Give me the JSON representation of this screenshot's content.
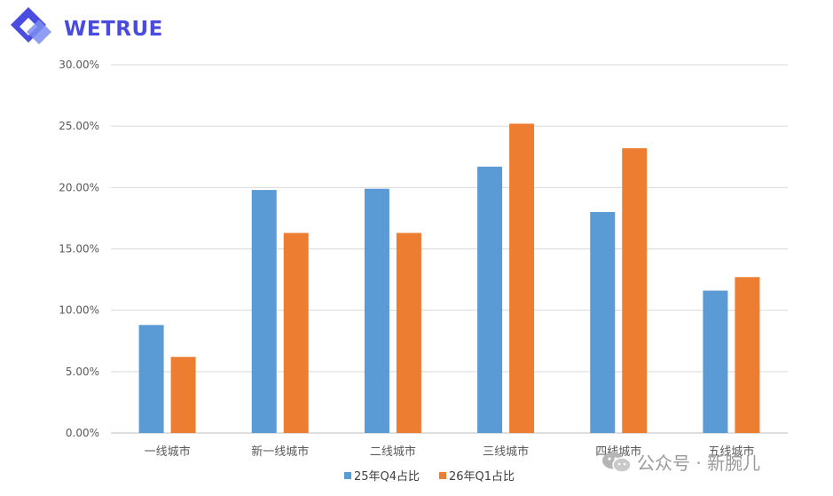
{
  "brand": {
    "name": "WETRUE"
  },
  "watermark": {
    "text": "公众号 · 新腕儿"
  },
  "chart_data": {
    "type": "bar",
    "categories": [
      "一线城市",
      "新一线城市",
      "二线城市",
      "三线城市",
      "四线城市",
      "五线城市"
    ],
    "series": [
      {
        "name": "25年Q4占比",
        "values": [
          8.8,
          19.8,
          19.9,
          21.7,
          18.0,
          11.6
        ],
        "color": "#5b9bd5"
      },
      {
        "name": "26年Q1占比",
        "values": [
          6.2,
          16.3,
          16.3,
          25.2,
          23.2,
          12.7
        ],
        "color": "#ed7d31"
      }
    ],
    "yticks": [
      "0.00%",
      "5.00%",
      "10.00%",
      "15.00%",
      "20.00%",
      "25.00%",
      "30.00%"
    ],
    "ylim": [
      0,
      30
    ],
    "grid": true,
    "legend": "bottom"
  }
}
